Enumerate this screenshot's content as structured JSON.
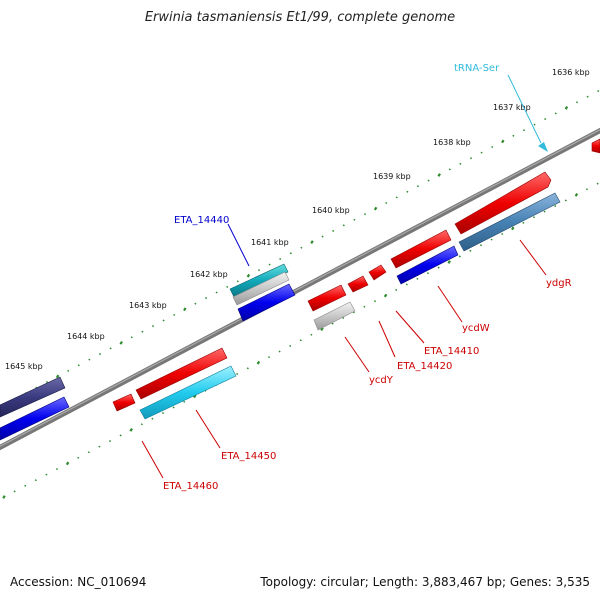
{
  "title": "Erwinia tasmaniensis Et1/99, complete genome",
  "footer": {
    "accession": "Accession: NC_010694",
    "summary": "Topology: circular; Length: 3,883,467 bp; Genes: 3,535"
  },
  "colors": {
    "ruler": "#2e8b2e",
    "backbone": "#777777",
    "forward": "#dd0000",
    "reverse": "#0000dd",
    "trna": "#33bbdd",
    "label_forward": "#cc0000",
    "label_reverse": "#0000cc"
  },
  "ruler_labels": [
    "1636 kbp",
    "1637 kbp",
    "1638 kbp",
    "1639 kbp",
    "1640 kbp",
    "1641 kbp",
    "1642 kbp",
    "1643 kbp",
    "1644 kbp",
    "1645 kbp"
  ],
  "gene_labels": {
    "trna_ser": "tRNA-Ser",
    "eta_14440": "ETA_14440",
    "ydgR": "ydgR",
    "ycdW": "ycdW",
    "eta_14410": "ETA_14410",
    "eta_14420": "ETA_14420",
    "ycdY": "ycdY",
    "eta_14450": "ETA_14450",
    "eta_14460": "ETA_14460"
  }
}
